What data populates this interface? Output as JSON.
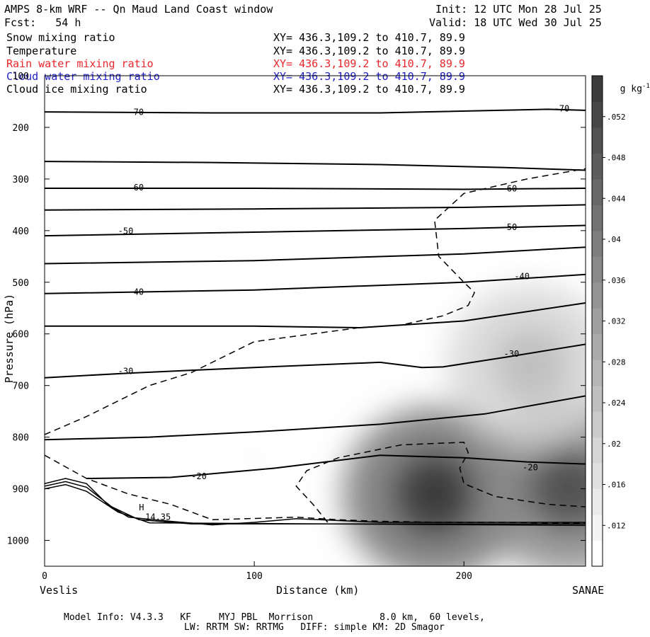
{
  "header": {
    "title": "AMPS 8-km WRF -- Qn Maud Land Coast window",
    "init": "Init: 12 UTC Mon 28 Jul 25",
    "fcst": "Fcst:   54 h",
    "valid": "Valid: 18 UTC Wed 30 Jul 25"
  },
  "fields": [
    {
      "name": "Snow mixing ratio",
      "xy": "XY= 436.3,109.2 to 410.7, 89.9",
      "color": "#000000"
    },
    {
      "name": "Temperature",
      "xy": "XY= 436.3,109.2 to 410.7, 89.9",
      "color": "#000000"
    },
    {
      "name": "Rain water mixing ratio",
      "xy": "XY= 436.3,109.2 to 410.7, 89.9",
      "color": "#e8262b"
    },
    {
      "name": "Cloud water mixing ratio",
      "xy": "XY= 436.3,109.2 to 410.7, 89.9",
      "color": "#2020c8"
    },
    {
      "name": "Cloud ice mixing ratio",
      "xy": "XY= 436.3,109.2 to 410.7, 89.9",
      "color": "#000000"
    }
  ],
  "footer": {
    "line1": "Model Info: V4.3.3   KF     MYJ PBL  Morrison            8.0 km,  60 levels,",
    "line2": "LW: RRTM SW: RRTMG   DIFF: simple KM: 2D Smagor"
  },
  "chart_data": {
    "type": "cross-section",
    "xlabel": "Distance (km)",
    "ylabel": "Pressure (hPa)",
    "xlim": [
      0,
      258
    ],
    "ylim": [
      1050,
      100
    ],
    "x_ticks": [
      0,
      100,
      200
    ],
    "y_ticks": [
      100,
      200,
      300,
      400,
      500,
      600,
      700,
      800,
      900,
      1000
    ],
    "x_endpoint_labels": {
      "left": "Veslis",
      "right": "SANAE"
    },
    "colorbar": {
      "unit_label": "g kg",
      "unit_exponent": "-1",
      "ticks": [
        ".012",
        ".016",
        ".02",
        ".024",
        ".028",
        ".032",
        ".036",
        ".04",
        ".044",
        ".048",
        ".052"
      ],
      "range": [
        0.008,
        0.056
      ],
      "colors": [
        "#ffffff",
        "#f4f4f4",
        "#eaeaea",
        "#e0e0e0",
        "#d6d6d6",
        "#cbcbcb",
        "#c0c0c0",
        "#b5b5b5",
        "#aaaaaa",
        "#9f9f9f",
        "#949494",
        "#898989",
        "#7e7e7e",
        "#737373",
        "#686868",
        "#5d5d5d",
        "#525252",
        "#474747",
        "#3c3c3c"
      ]
    },
    "snow_mixing_ratio_shading": [
      {
        "center_x": 186,
        "center_p": 910,
        "peak": 0.056
      },
      {
        "center_x": 250,
        "center_p": 900,
        "peak": 0.05
      },
      {
        "center_x": 232,
        "center_p": 660,
        "peak": 0.024
      },
      {
        "center_x": 100,
        "center_p": 840,
        "peak": 0.01
      }
    ],
    "temperature_isotherms": [
      {
        "label": "-70",
        "label_positions": [
          [
            40,
            172
          ],
          [
            243,
            165
          ]
        ],
        "points": [
          [
            0,
            170
          ],
          [
            80,
            172
          ],
          [
            160,
            172
          ],
          [
            240,
            165
          ],
          [
            258,
            167
          ]
        ]
      },
      {
        "label": "",
        "points": [
          [
            0,
            266
          ],
          [
            80,
            268
          ],
          [
            160,
            272
          ],
          [
            220,
            278
          ],
          [
            258,
            283
          ]
        ]
      },
      {
        "label": "-60",
        "label_positions": [
          [
            40,
            318
          ],
          [
            218,
            320
          ]
        ],
        "points": [
          [
            0,
            318
          ],
          [
            100,
            318
          ],
          [
            200,
            320
          ],
          [
            258,
            318
          ]
        ]
      },
      {
        "label": "",
        "points": [
          [
            0,
            360
          ],
          [
            100,
            358
          ],
          [
            200,
            355
          ],
          [
            258,
            350
          ]
        ]
      },
      {
        "label": "-50",
        "label_positions": [
          [
            35,
            402
          ],
          [
            218,
            395
          ]
        ],
        "points": [
          [
            0,
            410
          ],
          [
            100,
            403
          ],
          [
            200,
            396
          ],
          [
            258,
            390
          ]
        ]
      },
      {
        "label": "",
        "points": [
          [
            0,
            464
          ],
          [
            100,
            458
          ],
          [
            200,
            445
          ],
          [
            258,
            432
          ]
        ]
      },
      {
        "label": "-40",
        "label_positions": [
          [
            40,
            520
          ],
          [
            224,
            490
          ]
        ],
        "points": [
          [
            0,
            522
          ],
          [
            100,
            515
          ],
          [
            200,
            500
          ],
          [
            258,
            485
          ]
        ]
      },
      {
        "label": "",
        "points": [
          [
            0,
            585
          ],
          [
            100,
            585
          ],
          [
            150,
            588
          ],
          [
            200,
            575
          ],
          [
            258,
            540
          ]
        ]
      },
      {
        "label": "-30",
        "label_positions": [
          [
            35,
            674
          ],
          [
            219,
            640
          ]
        ],
        "points": [
          [
            0,
            685
          ],
          [
            40,
            676
          ],
          [
            100,
            665
          ],
          [
            160,
            655
          ],
          [
            180,
            665
          ],
          [
            190,
            664
          ],
          [
            220,
            645
          ],
          [
            258,
            620
          ]
        ]
      },
      {
        "label": "",
        "points": [
          [
            0,
            805
          ],
          [
            50,
            800
          ],
          [
            100,
            790
          ],
          [
            160,
            775
          ],
          [
            210,
            755
          ],
          [
            258,
            720
          ]
        ]
      },
      {
        "label": "-20",
        "label_positions": [
          [
            70,
            877
          ],
          [
            228,
            860
          ]
        ],
        "points": [
          [
            20,
            880
          ],
          [
            60,
            878
          ],
          [
            110,
            860
          ],
          [
            160,
            835
          ],
          [
            200,
            840
          ],
          [
            230,
            848
          ],
          [
            258,
            852
          ]
        ]
      }
    ],
    "cloud_ice_contours": [
      {
        "label": "",
        "points": [
          [
            0,
            795
          ],
          [
            20,
            760
          ],
          [
            50,
            700
          ],
          [
            70,
            675
          ],
          [
            100,
            615
          ],
          [
            150,
            588
          ],
          [
            170,
            583
          ],
          [
            190,
            565
          ],
          [
            202,
            545
          ],
          [
            205,
            520
          ],
          [
            200,
            500
          ],
          [
            188,
            450
          ],
          [
            186,
            380
          ],
          [
            200,
            328
          ],
          [
            230,
            300
          ],
          [
            258,
            280
          ]
        ]
      },
      {
        "label": "",
        "points": [
          [
            0,
            835
          ],
          [
            20,
            880
          ],
          [
            40,
            910
          ],
          [
            60,
            930
          ],
          [
            80,
            960
          ],
          [
            120,
            955
          ],
          [
            140,
            960
          ],
          [
            160,
            963
          ],
          [
            190,
            965
          ],
          [
            220,
            965
          ],
          [
            258,
            967
          ]
        ]
      },
      {
        "label": "",
        "points": [
          [
            135,
            965
          ],
          [
            128,
            930
          ],
          [
            120,
            895
          ],
          [
            125,
            865
          ],
          [
            140,
            840
          ],
          [
            170,
            815
          ],
          [
            200,
            810
          ],
          [
            202,
            830
          ],
          [
            198,
            860
          ],
          [
            200,
            890
          ],
          [
            215,
            915
          ],
          [
            240,
            930
          ],
          [
            258,
            935
          ]
        ]
      }
    ],
    "terrain_contours": [
      {
        "label": "",
        "points": [
          [
            0,
            890
          ],
          [
            10,
            880
          ],
          [
            20,
            890
          ],
          [
            30,
            930
          ],
          [
            40,
            955
          ],
          [
            60,
            963
          ],
          [
            80,
            970
          ],
          [
            100,
            965
          ],
          [
            120,
            958
          ],
          [
            160,
            965
          ],
          [
            258,
            965
          ]
        ]
      },
      {
        "label": "",
        "points": [
          [
            0,
            895
          ],
          [
            10,
            886
          ],
          [
            20,
            897
          ],
          [
            32,
            935
          ],
          [
            45,
            960
          ],
          [
            70,
            968
          ],
          [
            258,
            968
          ]
        ]
      },
      {
        "label": "",
        "points": [
          [
            0,
            900
          ],
          [
            10,
            892
          ],
          [
            20,
            905
          ],
          [
            35,
            945
          ],
          [
            50,
            966
          ],
          [
            258,
            971
          ]
        ]
      }
    ],
    "annotations": [
      {
        "text": "H",
        "x": 45,
        "p": 942
      },
      {
        "text": "14.35",
        "x": 48,
        "p": 960
      }
    ]
  }
}
